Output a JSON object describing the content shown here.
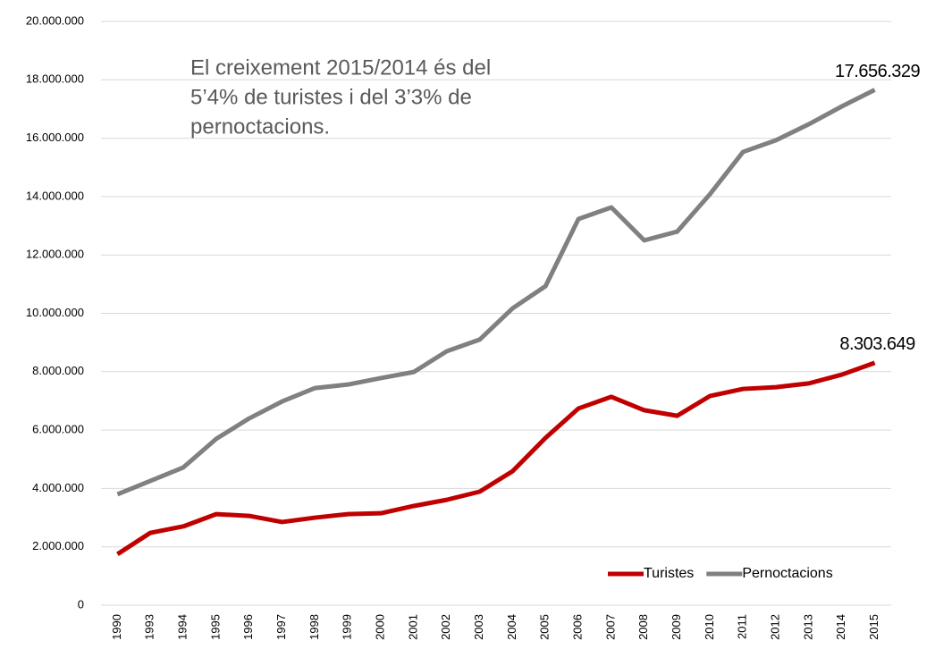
{
  "chart_data": {
    "type": "line",
    "annotation": [
      "El creixement 2015/2014 és del",
      "5’4% de turistes i del 3’3% de",
      "pernoctacions."
    ],
    "categories": [
      "1990",
      "1993",
      "1994",
      "1995",
      "1996",
      "1997",
      "1998",
      "1999",
      "2000",
      "2001",
      "2002",
      "2003",
      "2004",
      "2005",
      "2006",
      "2007",
      "2008",
      "2009",
      "2010",
      "2011",
      "2012",
      "2013",
      "2014",
      "2015"
    ],
    "series": [
      {
        "name": "Turistes",
        "color": "#c00000",
        "values": [
          1750000,
          2480000,
          2700000,
          3120000,
          3060000,
          2850000,
          3000000,
          3120000,
          3150000,
          3400000,
          3610000,
          3890000,
          4590000,
          5730000,
          6740000,
          7140000,
          6680000,
          6490000,
          7170000,
          7410000,
          7470000,
          7600000,
          7900000,
          8303649
        ],
        "value_labels": [
          null,
          null,
          null,
          null,
          null,
          null,
          null,
          null,
          null,
          null,
          null,
          null,
          null,
          null,
          null,
          null,
          null,
          null,
          null,
          null,
          null,
          null,
          null,
          "8.303.649"
        ]
      },
      {
        "name": "Pernoctacions",
        "color": "#808080",
        "values": [
          3800000,
          4260000,
          4720000,
          5700000,
          6400000,
          6980000,
          7440000,
          7560000,
          7780000,
          7990000,
          8700000,
          9100000,
          10170000,
          10930000,
          13230000,
          13630000,
          12500000,
          12800000,
          14090000,
          15530000,
          15930000,
          16480000,
          17090000,
          17656329
        ],
        "value_labels": [
          null,
          null,
          null,
          null,
          null,
          null,
          null,
          null,
          null,
          null,
          null,
          null,
          null,
          null,
          null,
          null,
          null,
          null,
          null,
          null,
          null,
          null,
          null,
          "17.656.329"
        ]
      }
    ],
    "ylim": [
      0,
      20000000
    ],
    "yticks": [
      0,
      {
        "value": 2000000,
        "label": "2.000.000"
      },
      {
        "value": 4000000,
        "label": "4.000.000"
      },
      {
        "value": 6000000,
        "label": "6.000.000"
      },
      {
        "value": 8000000,
        "label": "8.000.000"
      },
      {
        "value": 10000000,
        "label": "10.000.000"
      },
      {
        "value": 12000000,
        "label": "12.000.000"
      },
      {
        "value": 14000000,
        "label": "14.000.000"
      },
      {
        "value": 16000000,
        "label": "16.000.000"
      },
      {
        "value": 18000000,
        "label": "18.000.000"
      },
      {
        "value": 20000000,
        "label": "20.000.000"
      }
    ],
    "grid": true,
    "legend": "lower right"
  }
}
